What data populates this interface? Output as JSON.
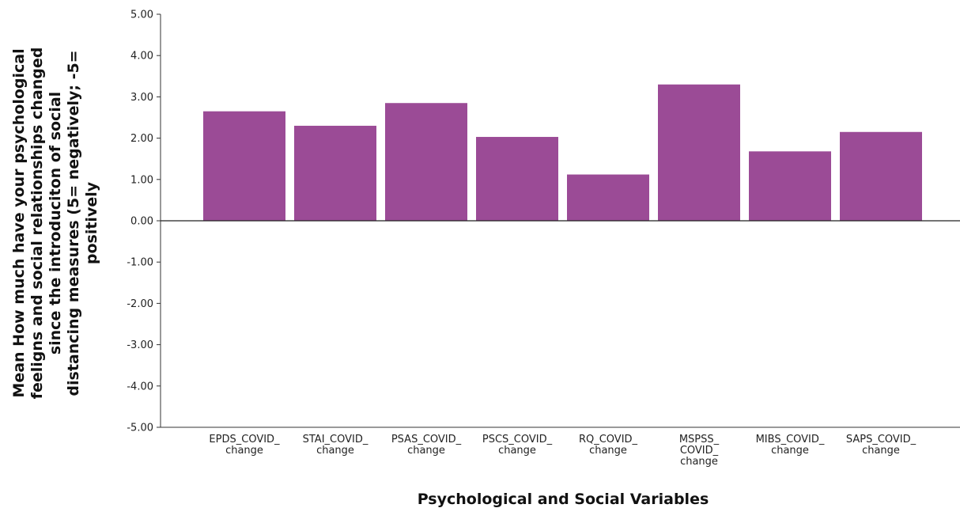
{
  "chart_data": {
    "type": "bar",
    "categories": [
      [
        "EPDS_COVID_",
        "change"
      ],
      [
        "STAI_COVID_",
        "change"
      ],
      [
        "PSAS_COVID_",
        "change"
      ],
      [
        "PSCS_COVID_",
        "change"
      ],
      [
        "RQ_COVID_",
        "change"
      ],
      [
        "MSPSS_",
        "COVID_",
        "change"
      ],
      [
        "MIBS_COVID_",
        "change"
      ],
      [
        "SAPS_COVID_",
        "change"
      ]
    ],
    "values": [
      2.65,
      2.3,
      2.85,
      2.03,
      1.12,
      3.3,
      1.68,
      2.15
    ],
    "ylim": [
      -5,
      5
    ],
    "yticks": [
      "5.00",
      "4.00",
      "3.00",
      "2.00",
      "1.00",
      "0.00",
      "-1.00",
      "-2.00",
      "-3.00",
      "-4.00",
      "-5.00"
    ],
    "xlabel": "Psychological and Social Variables",
    "ylabel": [
      "Mean How much have your psychological",
      "feeligns and social relationships changed",
      "since the introduciton of social",
      "distancing measures (5= negatively; -5=",
      "positively"
    ],
    "bar_color": "#9b4b96",
    "grid": false,
    "legend": "none"
  }
}
